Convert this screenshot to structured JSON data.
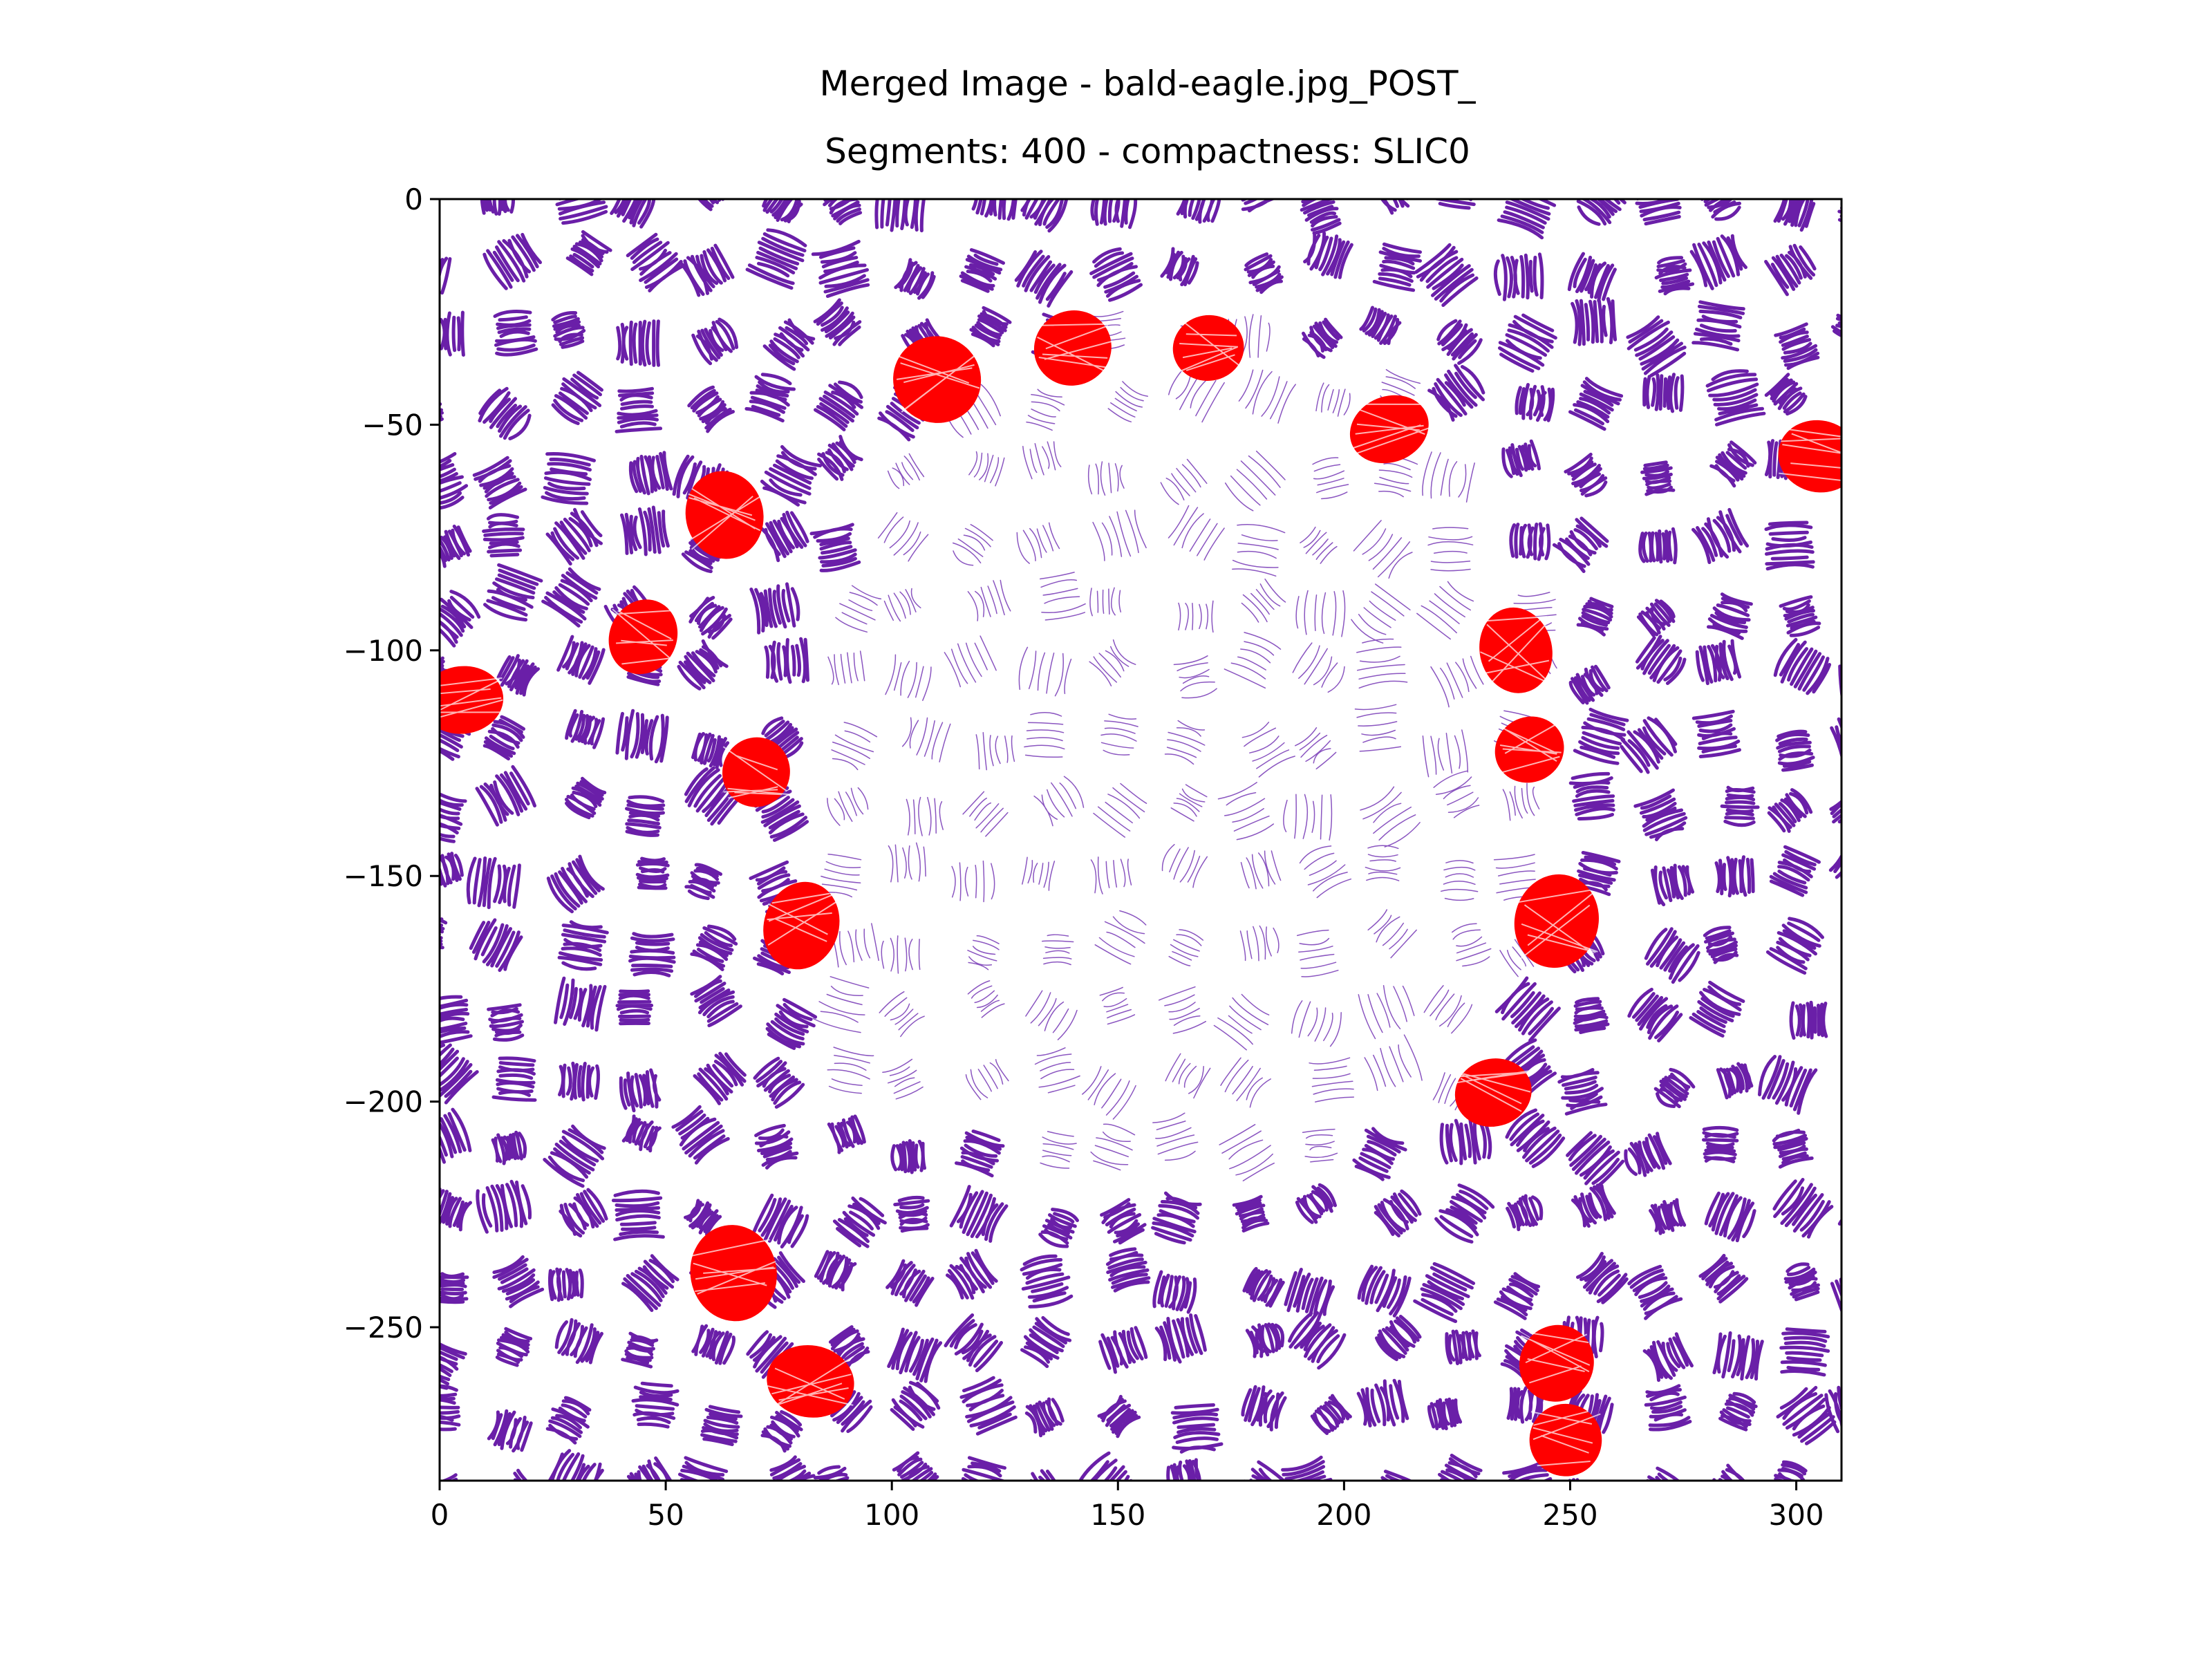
{
  "chart_data": {
    "type": "scatter",
    "title_line1": "Merged Image - bald-eagle.jpg_POST_",
    "title_line2": "Segments: 400 - compactness: SLIC0",
    "xlabel": "",
    "ylabel": "",
    "xlim": [
      0,
      310
    ],
    "ylim": [
      -284,
      0
    ],
    "xticks": [
      0,
      50,
      100,
      150,
      200,
      250,
      300
    ],
    "yticks": [
      0,
      -50,
      -100,
      -150,
      -200,
      -250
    ],
    "xtick_labels": [
      "0",
      "50",
      "100",
      "150",
      "200",
      "250",
      "300"
    ],
    "ytick_labels": [
      "0",
      "−50",
      "−100",
      "−150",
      "−200",
      "−250"
    ],
    "grid": false,
    "colors": {
      "background_segments": "#6a1fa8",
      "eagle_segments": "#8a55c0",
      "highlight_segments": "#ff0000"
    },
    "eagle_head_center": [
      165,
      -125
    ],
    "highlight_segments": [
      {
        "x": 110,
        "y": -40
      },
      {
        "x": 140,
        "y": -33
      },
      {
        "x": 170,
        "y": -33
      },
      {
        "x": 210,
        "y": -51
      },
      {
        "x": 305,
        "y": -57
      },
      {
        "x": 63,
        "y": -70
      },
      {
        "x": 45,
        "y": -97
      },
      {
        "x": 5,
        "y": -111
      },
      {
        "x": 70,
        "y": -127
      },
      {
        "x": 238,
        "y": -100
      },
      {
        "x": 241,
        "y": -122
      },
      {
        "x": 80,
        "y": -161
      },
      {
        "x": 247,
        "y": -160
      },
      {
        "x": 233,
        "y": -198
      },
      {
        "x": 65,
        "y": -238
      },
      {
        "x": 82,
        "y": -262
      },
      {
        "x": 247,
        "y": -258
      },
      {
        "x": 249,
        "y": -275
      }
    ]
  }
}
